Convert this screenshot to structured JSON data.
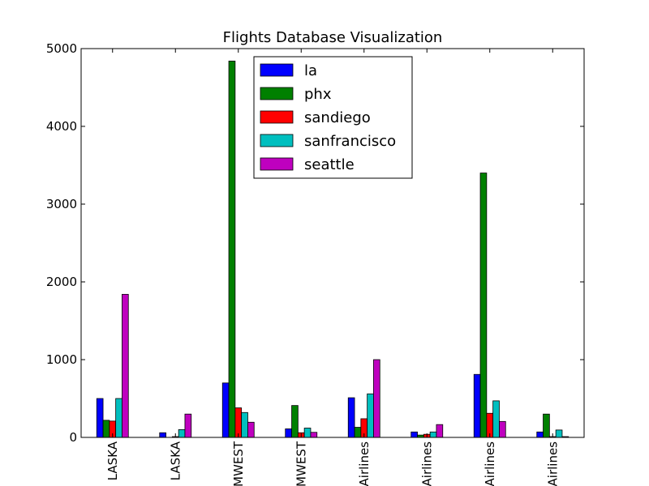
{
  "chart_data": {
    "type": "bar",
    "title": "Flights Database Visualization",
    "xlabel": "",
    "ylabel": "",
    "ylim": [
      0,
      5000
    ],
    "yticks": [
      0,
      1000,
      2000,
      3000,
      4000,
      5000
    ],
    "grid": false,
    "legend_position": "top-center",
    "categories": [
      "LASKA",
      "LASKA",
      "MWEST",
      "MWEST",
      "Airlines",
      "Airlines",
      "Airlines",
      "Airlines"
    ],
    "series": [
      {
        "name": "la",
        "color": "#0000ff",
        "values": [
          500,
          60,
          700,
          110,
          510,
          70,
          810,
          70
        ]
      },
      {
        "name": "phx",
        "color": "#008000",
        "values": [
          220,
          0,
          4840,
          410,
          130,
          30,
          3400,
          300
        ]
      },
      {
        "name": "sandiego",
        "color": "#ff0000",
        "values": [
          210,
          10,
          380,
          60,
          240,
          40,
          310,
          10
        ]
      },
      {
        "name": "sanfrancisco",
        "color": "#00bfbf",
        "values": [
          500,
          100,
          320,
          120,
          560,
          70,
          470,
          95
        ]
      },
      {
        "name": "seattle",
        "color": "#bf00bf",
        "values": [
          1840,
          300,
          195,
          65,
          1000,
          165,
          205,
          10
        ]
      }
    ]
  }
}
